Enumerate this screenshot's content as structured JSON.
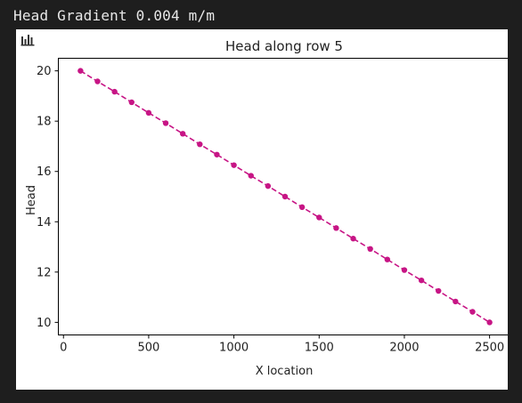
{
  "output": {
    "text": "Head Gradient 0.004 m/m"
  },
  "figure": {
    "toolbar_icon": "bar-chart-icon"
  },
  "chart_data": {
    "type": "line",
    "title": "Head along row 5",
    "xlabel": "X location",
    "ylabel": "Head",
    "xlim": [
      -30,
      2630
    ],
    "ylim": [
      9.5,
      20.5
    ],
    "xticks": [
      0,
      500,
      1000,
      1500,
      2000,
      2500
    ],
    "yticks": [
      10,
      12,
      14,
      16,
      18,
      20
    ],
    "grid": false,
    "series": [
      {
        "color": "#c71585",
        "line_style": "dashed",
        "marker": "circle",
        "x": [
          100,
          200,
          300,
          400,
          500,
          600,
          700,
          800,
          900,
          1000,
          1100,
          1200,
          1300,
          1400,
          1500,
          1600,
          1700,
          1800,
          1900,
          2000,
          2100,
          2200,
          2300,
          2400,
          2500
        ],
        "y": [
          20.0,
          19.58,
          19.17,
          18.75,
          18.33,
          17.92,
          17.5,
          17.08,
          16.67,
          16.25,
          15.83,
          15.42,
          15.0,
          14.58,
          14.17,
          13.75,
          13.33,
          12.92,
          12.5,
          12.08,
          11.67,
          11.25,
          10.83,
          10.42,
          10.0
        ]
      }
    ]
  }
}
